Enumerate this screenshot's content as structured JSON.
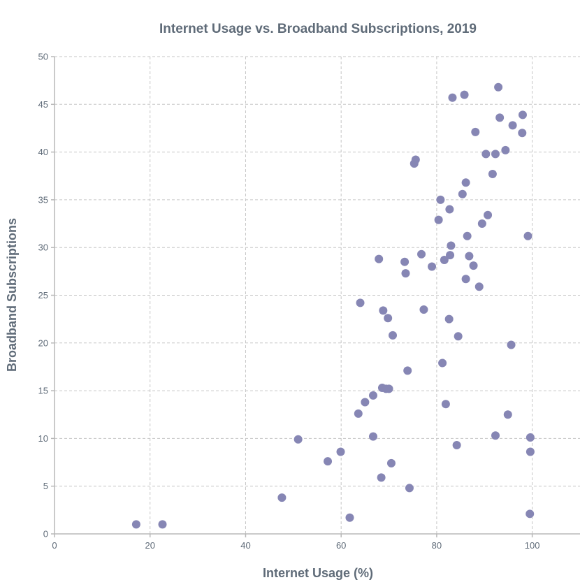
{
  "chart_data": {
    "type": "scatter",
    "title": "Internet Usage vs. Broadband Subscriptions, 2019",
    "xlabel": "Internet Usage (%)",
    "ylabel": "Broadband Subscriptions",
    "xlim": [
      0,
      110
    ],
    "ylim": [
      0,
      50
    ],
    "xticks": [
      0,
      20,
      40,
      60,
      80,
      100
    ],
    "yticks": [
      0,
      5,
      10,
      15,
      20,
      25,
      30,
      35,
      40,
      45,
      50
    ],
    "grid": true,
    "point_color": "#8686b4",
    "points": [
      {
        "x": 17.1,
        "y": 1.0
      },
      {
        "x": 22.6,
        "y": 1.0
      },
      {
        "x": 47.6,
        "y": 3.8
      },
      {
        "x": 51.0,
        "y": 9.9
      },
      {
        "x": 57.2,
        "y": 7.6
      },
      {
        "x": 59.9,
        "y": 8.6
      },
      {
        "x": 61.8,
        "y": 1.7
      },
      {
        "x": 63.6,
        "y": 12.6
      },
      {
        "x": 64.0,
        "y": 24.2
      },
      {
        "x": 65.0,
        "y": 13.8
      },
      {
        "x": 66.7,
        "y": 14.5
      },
      {
        "x": 66.7,
        "y": 10.2
      },
      {
        "x": 67.9,
        "y": 28.8
      },
      {
        "x": 68.4,
        "y": 5.9
      },
      {
        "x": 68.6,
        "y": 15.3
      },
      {
        "x": 68.8,
        "y": 23.4
      },
      {
        "x": 69.4,
        "y": 15.2
      },
      {
        "x": 69.8,
        "y": 22.6
      },
      {
        "x": 70.0,
        "y": 15.2
      },
      {
        "x": 70.5,
        "y": 7.4
      },
      {
        "x": 70.8,
        "y": 20.8
      },
      {
        "x": 73.3,
        "y": 28.5
      },
      {
        "x": 73.5,
        "y": 27.3
      },
      {
        "x": 73.9,
        "y": 17.1
      },
      {
        "x": 74.3,
        "y": 4.8
      },
      {
        "x": 75.3,
        "y": 38.8
      },
      {
        "x": 75.6,
        "y": 39.2
      },
      {
        "x": 76.8,
        "y": 29.3
      },
      {
        "x": 77.3,
        "y": 23.5
      },
      {
        "x": 79.0,
        "y": 28.0
      },
      {
        "x": 80.4,
        "y": 32.9
      },
      {
        "x": 80.8,
        "y": 35.0
      },
      {
        "x": 81.2,
        "y": 17.9
      },
      {
        "x": 81.6,
        "y": 28.7
      },
      {
        "x": 81.9,
        "y": 13.6
      },
      {
        "x": 82.6,
        "y": 22.5
      },
      {
        "x": 82.7,
        "y": 34.0
      },
      {
        "x": 82.8,
        "y": 29.2
      },
      {
        "x": 83.0,
        "y": 30.2
      },
      {
        "x": 83.3,
        "y": 45.7
      },
      {
        "x": 84.2,
        "y": 9.3
      },
      {
        "x": 84.5,
        "y": 20.7
      },
      {
        "x": 85.4,
        "y": 35.6
      },
      {
        "x": 85.8,
        "y": 46.0
      },
      {
        "x": 86.1,
        "y": 26.7
      },
      {
        "x": 86.1,
        "y": 36.8
      },
      {
        "x": 86.4,
        "y": 31.2
      },
      {
        "x": 86.8,
        "y": 29.1
      },
      {
        "x": 87.7,
        "y": 28.1
      },
      {
        "x": 88.1,
        "y": 42.1
      },
      {
        "x": 88.9,
        "y": 25.9
      },
      {
        "x": 89.5,
        "y": 32.5
      },
      {
        "x": 90.3,
        "y": 39.8
      },
      {
        "x": 90.7,
        "y": 33.4
      },
      {
        "x": 91.7,
        "y": 37.7
      },
      {
        "x": 92.3,
        "y": 39.8
      },
      {
        "x": 92.3,
        "y": 10.3
      },
      {
        "x": 92.9,
        "y": 46.8
      },
      {
        "x": 93.2,
        "y": 43.6
      },
      {
        "x": 94.4,
        "y": 40.2
      },
      {
        "x": 94.9,
        "y": 12.5
      },
      {
        "x": 95.6,
        "y": 19.8
      },
      {
        "x": 95.9,
        "y": 42.8
      },
      {
        "x": 97.9,
        "y": 42.0
      },
      {
        "x": 98.0,
        "y": 43.9
      },
      {
        "x": 99.1,
        "y": 31.2
      },
      {
        "x": 99.5,
        "y": 2.1
      },
      {
        "x": 99.6,
        "y": 10.1
      },
      {
        "x": 99.6,
        "y": 8.6
      }
    ]
  }
}
